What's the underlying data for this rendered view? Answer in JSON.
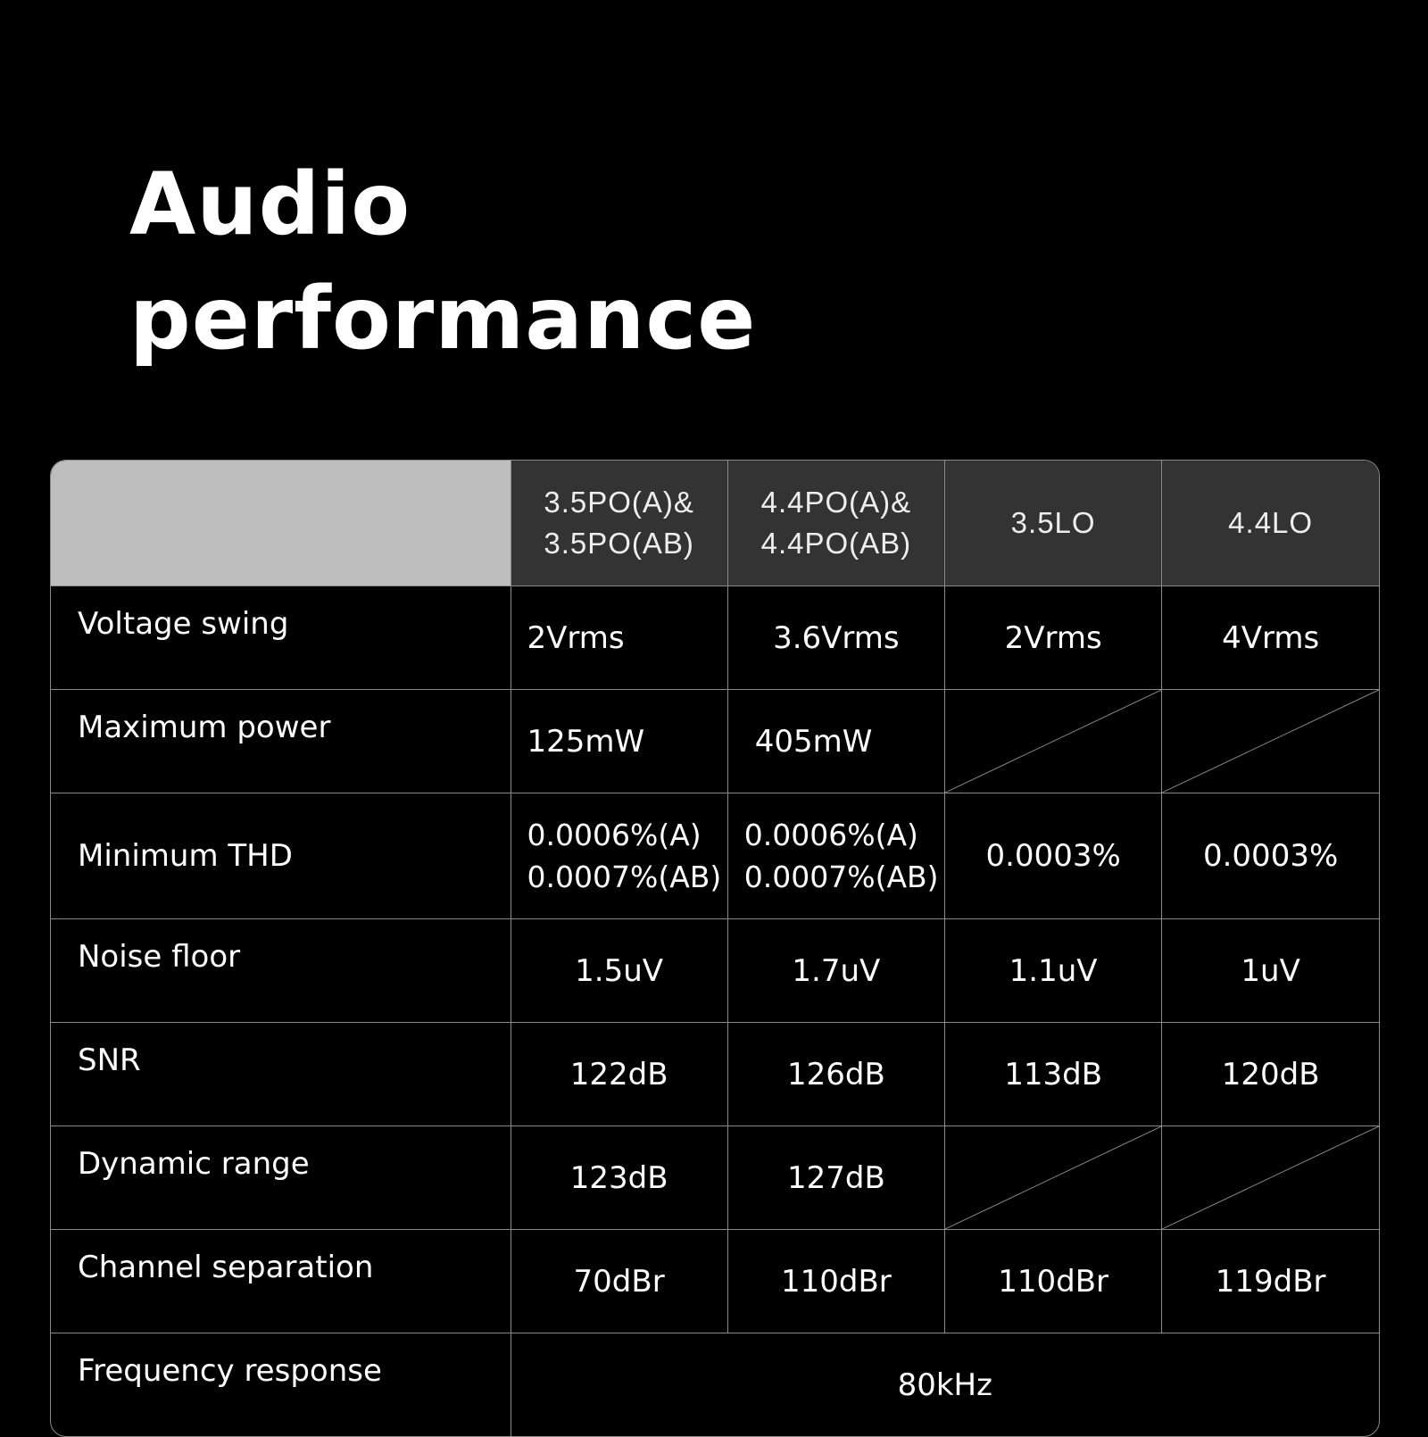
{
  "title": {
    "line1": "Audio",
    "line2": "performance"
  },
  "table": {
    "headers": [
      {
        "line1": "3.5PO(A)&",
        "line2": "3.5PO(AB)"
      },
      {
        "line1": "4.4PO(A)&",
        "line2": "4.4PO(AB)"
      },
      {
        "line1": "3.5LO"
      },
      {
        "line1": "4.4LO"
      }
    ],
    "rows": [
      {
        "label": "Voltage swing",
        "values": [
          "2Vrms",
          "3.6Vrms",
          "2Vrms",
          "4Vrms"
        ]
      },
      {
        "label": "Maximum power",
        "values": [
          "125mW",
          "405mW",
          "",
          ""
        ]
      },
      {
        "label": "Minimum THD",
        "values": [
          [
            "0.0006%(A)",
            "0.0007%(AB)"
          ],
          [
            "0.0006%(A)",
            "0.0007%(AB)"
          ],
          "0.0003%",
          "0.0003%"
        ]
      },
      {
        "label": "Noise floor",
        "values": [
          "1.5uV",
          "1.7uV",
          "1.1uV",
          "1uV"
        ]
      },
      {
        "label": "SNR",
        "values": [
          "122dB",
          "126dB",
          "113dB",
          "120dB"
        ]
      },
      {
        "label": "Dynamic range",
        "values": [
          "123dB",
          "127dB",
          "",
          ""
        ]
      },
      {
        "label": "Channel separation",
        "values": [
          "70dBr",
          "110dBr",
          "110dBr",
          "119dBr"
        ]
      },
      {
        "label": "Frequency response",
        "values": [
          "80kHz"
        ]
      }
    ]
  },
  "colors": {
    "background": "#000000",
    "header_blank": "#bdbdbd",
    "header_cell": "#333333",
    "grid": "#8a8a8a"
  }
}
